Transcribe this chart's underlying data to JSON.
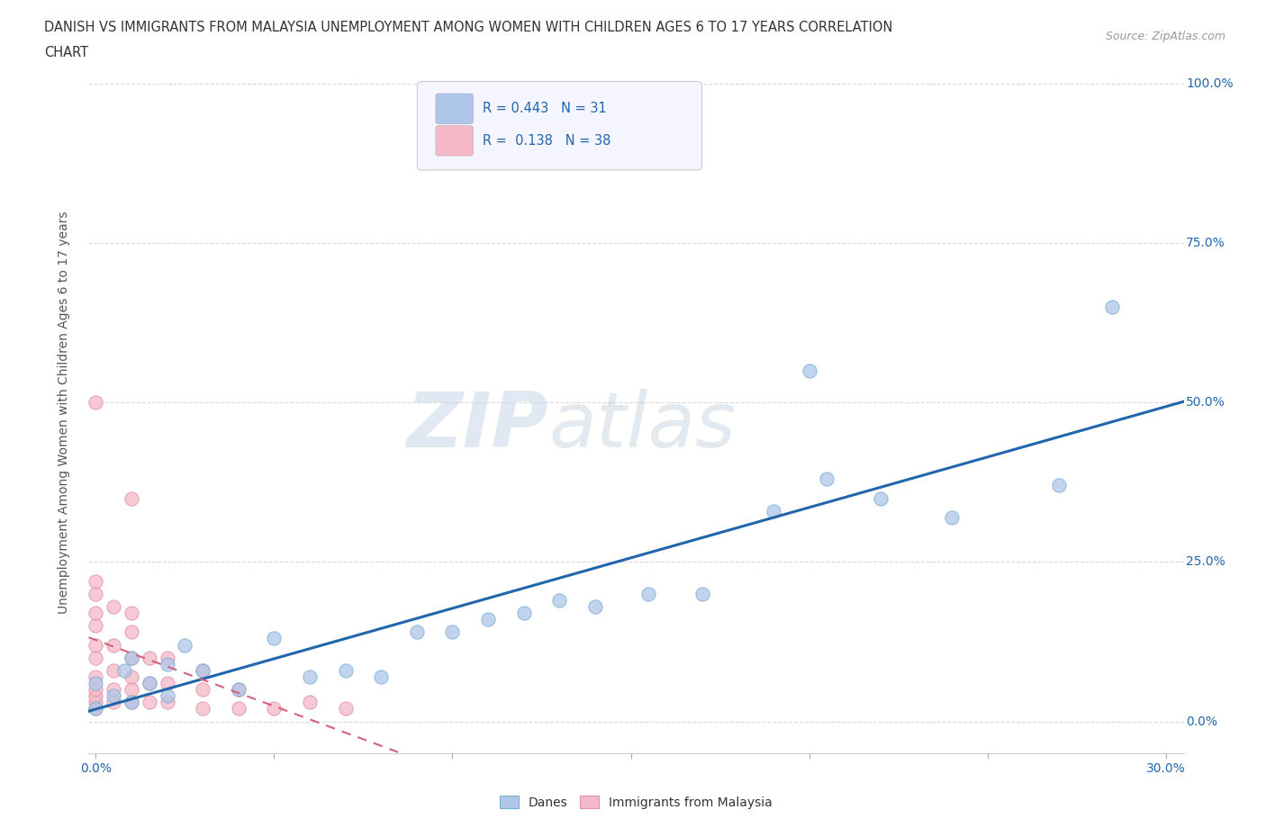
{
  "title_line1": "DANISH VS IMMIGRANTS FROM MALAYSIA UNEMPLOYMENT AMONG WOMEN WITH CHILDREN AGES 6 TO 17 YEARS CORRELATION",
  "title_line2": "CHART",
  "source_text": "Source: ZipAtlas.com",
  "ylabel": "Unemployment Among Women with Children Ages 6 to 17 years",
  "background_color": "#ffffff",
  "grid_color": "#d8d8d8",
  "danes_color": "#aec6e8",
  "danes_edge_color": "#7aafd4",
  "danes_line_color": "#2166ac",
  "immigrants_color": "#f4b8c8",
  "immigrants_edge_color": "#e090a8",
  "immigrants_line_color": "#d6607a",
  "R_danes": 0.443,
  "N_danes": 31,
  "R_immigrants": 0.138,
  "N_immigrants": 38,
  "xlim": [
    -0.002,
    0.305
  ],
  "ylim": [
    -0.05,
    1.02
  ],
  "xticks": [
    0.0,
    0.05,
    0.1,
    0.15,
    0.2,
    0.25,
    0.3
  ],
  "yticks": [
    0.0,
    0.25,
    0.5,
    0.75,
    1.0
  ],
  "danes_x": [
    0.0,
    0.0,
    0.005,
    0.008,
    0.01,
    0.01,
    0.015,
    0.02,
    0.02,
    0.025,
    0.03,
    0.04,
    0.05,
    0.06,
    0.07,
    0.08,
    0.09,
    0.1,
    0.11,
    0.12,
    0.13,
    0.14,
    0.155,
    0.17,
    0.19,
    0.2,
    0.205,
    0.22,
    0.24,
    0.27,
    0.285
  ],
  "danes_y": [
    0.02,
    0.06,
    0.04,
    0.08,
    0.03,
    0.1,
    0.06,
    0.04,
    0.09,
    0.12,
    0.08,
    0.05,
    0.13,
    0.07,
    0.08,
    0.07,
    0.14,
    0.14,
    0.16,
    0.17,
    0.19,
    0.18,
    0.2,
    0.2,
    0.33,
    0.55,
    0.38,
    0.35,
    0.32,
    0.37,
    0.65
  ],
  "immigrants_x": [
    0.0,
    0.0,
    0.0,
    0.0,
    0.0,
    0.0,
    0.0,
    0.0,
    0.0,
    0.0,
    0.0,
    0.0,
    0.005,
    0.005,
    0.005,
    0.005,
    0.005,
    0.01,
    0.01,
    0.01,
    0.01,
    0.01,
    0.01,
    0.01,
    0.015,
    0.015,
    0.015,
    0.02,
    0.02,
    0.02,
    0.03,
    0.03,
    0.03,
    0.04,
    0.04,
    0.05,
    0.06,
    0.07
  ],
  "immigrants_y": [
    0.02,
    0.03,
    0.04,
    0.05,
    0.07,
    0.1,
    0.12,
    0.15,
    0.17,
    0.2,
    0.22,
    0.5,
    0.03,
    0.05,
    0.08,
    0.12,
    0.18,
    0.03,
    0.05,
    0.07,
    0.1,
    0.14,
    0.17,
    0.35,
    0.03,
    0.06,
    0.1,
    0.03,
    0.06,
    0.1,
    0.02,
    0.05,
    0.08,
    0.02,
    0.05,
    0.02,
    0.03,
    0.02
  ],
  "watermark_zip": "ZIP",
  "watermark_atlas": "atlas",
  "marker_size": 120
}
